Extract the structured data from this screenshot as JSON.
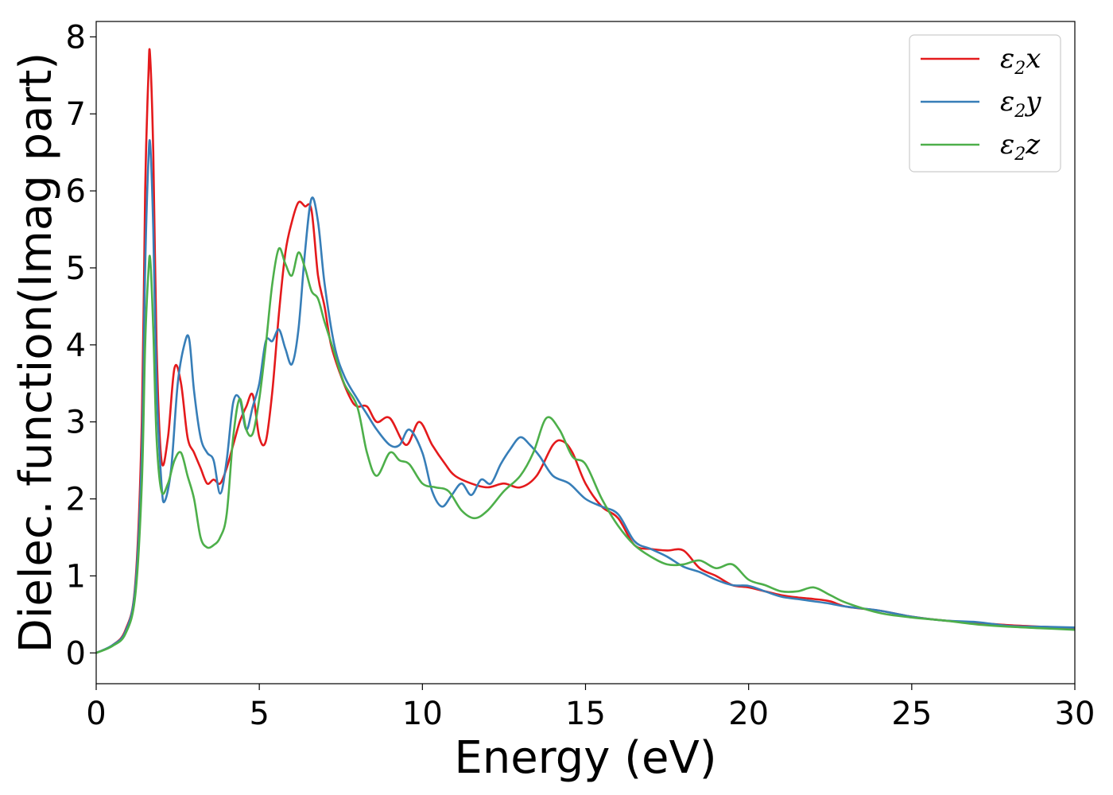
{
  "chart_data": {
    "type": "line",
    "xlabel": "Energy (eV)",
    "ylabel": "Dielec. function(Imag part)",
    "xlim": [
      0,
      30
    ],
    "ylim": [
      -0.4,
      8.2
    ],
    "xticks": [
      0,
      5,
      10,
      15,
      20,
      25,
      30
    ],
    "yticks": [
      0,
      1,
      2,
      3,
      4,
      5,
      6,
      7,
      8
    ],
    "grid": false,
    "legend_position": "top-right",
    "series": [
      {
        "name": "ε2x",
        "legend_base": "ε",
        "legend_sub": "2",
        "legend_tail": "x",
        "color": "#e41a1c",
        "x": [
          0,
          0.5,
          0.9,
          1.2,
          1.4,
          1.5,
          1.6,
          1.65,
          1.75,
          1.85,
          2.0,
          2.2,
          2.4,
          2.6,
          2.8,
          3.0,
          3.2,
          3.4,
          3.6,
          3.8,
          4.0,
          4.2,
          4.4,
          4.6,
          4.8,
          5.0,
          5.2,
          5.4,
          5.6,
          5.8,
          6.0,
          6.2,
          6.4,
          6.6,
          6.8,
          7.0,
          7.2,
          7.5,
          7.8,
          8.0,
          8.3,
          8.6,
          9.0,
          9.5,
          9.9,
          10.3,
          10.7,
          11.0,
          11.5,
          12.0,
          12.5,
          13.0,
          13.5,
          14.0,
          14.3,
          14.6,
          15.0,
          15.5,
          16.0,
          16.5,
          17.0,
          17.5,
          18.0,
          18.5,
          19.0,
          19.5,
          20.0,
          20.5,
          21.0,
          21.5,
          22.0,
          22.5,
          23.0,
          24.0,
          25.0,
          26.0,
          27.0,
          28.0,
          29.0,
          30.0
        ],
        "y": [
          0.0,
          0.1,
          0.3,
          0.9,
          3.0,
          6.0,
          7.5,
          7.77,
          6.5,
          4.0,
          2.5,
          2.8,
          3.7,
          3.5,
          2.8,
          2.6,
          2.4,
          2.2,
          2.25,
          2.2,
          2.4,
          2.7,
          3.0,
          3.2,
          3.35,
          2.8,
          2.75,
          3.4,
          4.4,
          5.2,
          5.6,
          5.85,
          5.8,
          5.75,
          4.9,
          4.5,
          4.0,
          3.6,
          3.3,
          3.2,
          3.2,
          3.0,
          3.05,
          2.7,
          3.0,
          2.7,
          2.45,
          2.3,
          2.2,
          2.15,
          2.2,
          2.15,
          2.3,
          2.7,
          2.75,
          2.6,
          2.2,
          1.9,
          1.75,
          1.4,
          1.35,
          1.33,
          1.33,
          1.1,
          1.0,
          0.88,
          0.85,
          0.8,
          0.75,
          0.72,
          0.7,
          0.67,
          0.6,
          0.55,
          0.47,
          0.42,
          0.39,
          0.36,
          0.34,
          0.32
        ]
      },
      {
        "name": "ε2y",
        "legend_base": "ε",
        "legend_sub": "2",
        "legend_tail": "y",
        "color": "#377eb8",
        "x": [
          0,
          0.5,
          0.9,
          1.2,
          1.4,
          1.5,
          1.6,
          1.66,
          1.75,
          1.85,
          2.0,
          2.1,
          2.3,
          2.5,
          2.7,
          2.85,
          3.0,
          3.2,
          3.4,
          3.6,
          3.8,
          4.0,
          4.2,
          4.4,
          4.6,
          4.8,
          5.0,
          5.2,
          5.4,
          5.6,
          5.8,
          6.0,
          6.2,
          6.4,
          6.6,
          6.8,
          7.0,
          7.3,
          7.6,
          8.0,
          8.3,
          8.6,
          9.0,
          9.3,
          9.6,
          10.0,
          10.3,
          10.6,
          10.9,
          11.2,
          11.5,
          11.8,
          12.1,
          12.4,
          12.7,
          13.0,
          13.3,
          13.6,
          14.0,
          14.5,
          15.0,
          15.5,
          16.0,
          16.5,
          17.0,
          17.5,
          18.0,
          18.5,
          19.0,
          19.5,
          20.0,
          20.5,
          21.0,
          21.5,
          22.0,
          22.5,
          23.0,
          24.0,
          25.0,
          26.0,
          27.0,
          28.0,
          29.0,
          30.0
        ],
        "y": [
          0.0,
          0.1,
          0.28,
          0.85,
          2.6,
          5.0,
          6.4,
          6.58,
          5.5,
          3.5,
          2.2,
          1.97,
          2.4,
          3.5,
          4.0,
          4.08,
          3.4,
          2.8,
          2.6,
          2.5,
          2.07,
          2.5,
          3.25,
          3.3,
          2.9,
          3.2,
          3.5,
          4.05,
          4.05,
          4.2,
          3.95,
          3.75,
          4.2,
          5.2,
          5.9,
          5.6,
          4.8,
          4.0,
          3.6,
          3.3,
          3.1,
          2.9,
          2.7,
          2.7,
          2.9,
          2.6,
          2.1,
          1.9,
          2.05,
          2.2,
          2.05,
          2.25,
          2.2,
          2.45,
          2.65,
          2.8,
          2.7,
          2.55,
          2.3,
          2.2,
          2.0,
          1.9,
          1.8,
          1.45,
          1.35,
          1.25,
          1.12,
          1.05,
          0.95,
          0.88,
          0.87,
          0.8,
          0.73,
          0.7,
          0.67,
          0.64,
          0.6,
          0.55,
          0.47,
          0.42,
          0.4,
          0.35,
          0.34,
          0.33
        ]
      },
      {
        "name": "ε2z",
        "legend_base": "ε",
        "legend_sub": "2",
        "legend_tail": "z",
        "color": "#4daf4a",
        "x": [
          0,
          0.5,
          0.9,
          1.2,
          1.4,
          1.5,
          1.6,
          1.66,
          1.75,
          1.85,
          2.0,
          2.2,
          2.4,
          2.6,
          2.8,
          3.0,
          3.2,
          3.4,
          3.6,
          3.8,
          4.0,
          4.2,
          4.4,
          4.6,
          4.8,
          5.0,
          5.2,
          5.4,
          5.6,
          5.8,
          6.0,
          6.2,
          6.4,
          6.6,
          6.8,
          7.0,
          7.3,
          7.6,
          8.0,
          8.3,
          8.6,
          9.0,
          9.3,
          9.6,
          10.0,
          10.4,
          10.8,
          11.2,
          11.6,
          12.0,
          12.5,
          13.0,
          13.4,
          13.8,
          14.2,
          14.6,
          15.0,
          15.5,
          16.0,
          16.5,
          17.0,
          17.5,
          18.0,
          18.5,
          19.0,
          19.5,
          20.0,
          20.5,
          21.0,
          21.5,
          22.0,
          22.5,
          23.0,
          24.0,
          25.0,
          26.0,
          27.0,
          28.0,
          29.0,
          30.0
        ],
        "y": [
          0.0,
          0.09,
          0.25,
          0.75,
          2.2,
          4.0,
          4.95,
          5.1,
          4.2,
          2.8,
          2.1,
          2.2,
          2.5,
          2.6,
          2.3,
          2.0,
          1.5,
          1.37,
          1.4,
          1.5,
          1.8,
          2.8,
          3.3,
          2.9,
          2.85,
          3.3,
          4.0,
          4.8,
          5.25,
          5.05,
          4.9,
          5.2,
          5.0,
          4.7,
          4.6,
          4.3,
          3.9,
          3.5,
          3.2,
          2.6,
          2.3,
          2.6,
          2.5,
          2.45,
          2.2,
          2.15,
          2.1,
          1.85,
          1.75,
          1.85,
          2.1,
          2.3,
          2.6,
          3.05,
          2.9,
          2.55,
          2.45,
          2.0,
          1.65,
          1.4,
          1.25,
          1.15,
          1.15,
          1.2,
          1.1,
          1.15,
          0.95,
          0.88,
          0.8,
          0.8,
          0.85,
          0.75,
          0.65,
          0.52,
          0.46,
          0.42,
          0.37,
          0.34,
          0.32,
          0.3
        ]
      }
    ]
  }
}
